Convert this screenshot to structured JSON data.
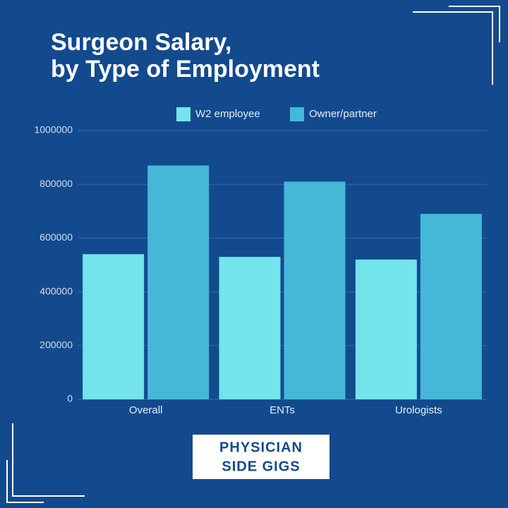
{
  "chart_data": {
    "type": "bar",
    "title": [
      "Surgeon Salary,",
      "by Type of Employment"
    ],
    "categories": [
      "Overall",
      "ENTs",
      "Urologists"
    ],
    "series": [
      {
        "name": "W2 employee",
        "color": "#72e4ea",
        "values": [
          540000,
          530000,
          520000
        ]
      },
      {
        "name": "Owner/partner",
        "color": "#45b8d8",
        "values": [
          870000,
          810000,
          690000
        ]
      }
    ],
    "ylim": [
      0,
      1000000
    ],
    "yticks": [
      0,
      200000,
      400000,
      600000,
      800000,
      1000000
    ],
    "grid": true
  },
  "logo": [
    "PHYSICIAN",
    "SIDE GIGS"
  ]
}
